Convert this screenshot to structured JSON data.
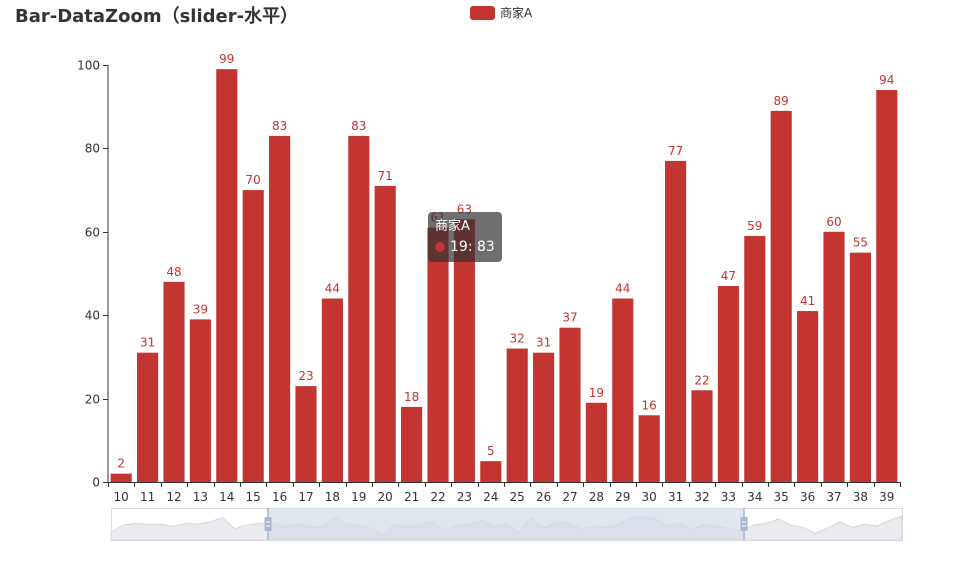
{
  "title": "Bar-DataZoom（slider-水平）",
  "legend": {
    "label": "商家A",
    "color": "#c23531"
  },
  "tooltip": {
    "series": "商家A",
    "category": "19",
    "value": "83",
    "text": "19: 83"
  },
  "colors": {
    "bar": "#c23531",
    "axis": "#333333",
    "label": "#c23531",
    "slider_fill": "#d2dbe7",
    "slider_handle": "#a7b7cc",
    "slider_bg_area": "#e9ebee"
  },
  "chart_data": {
    "type": "bar",
    "title": "Bar-DataZoom（slider-水平）",
    "xlabel": "",
    "ylabel": "",
    "ylim": [
      0,
      100
    ],
    "yticks": [
      0,
      20,
      40,
      60,
      80,
      100
    ],
    "grid": false,
    "legend_position": "top-center",
    "categories": [
      "10",
      "11",
      "12",
      "13",
      "14",
      "15",
      "16",
      "17",
      "18",
      "19",
      "20",
      "21",
      "22",
      "23",
      "24",
      "25",
      "26",
      "27",
      "28",
      "29",
      "30",
      "31",
      "32",
      "33",
      "34",
      "35",
      "36",
      "37",
      "38",
      "39"
    ],
    "series": [
      {
        "name": "商家A",
        "values": [
          2,
          31,
          48,
          39,
          99,
          70,
          83,
          23,
          44,
          83,
          71,
          18,
          61,
          63,
          5,
          32,
          31,
          37,
          19,
          44,
          16,
          77,
          22,
          47,
          59,
          89,
          41,
          60,
          55,
          94
        ]
      }
    ],
    "datazoom": {
      "type": "slider",
      "orientation": "horizontal",
      "preview_values": [
        50,
        60,
        62,
        61,
        61,
        58,
        62,
        61,
        64,
        70,
        55,
        60,
        62,
        63,
        58,
        62,
        58,
        57,
        70,
        62,
        59,
        56,
        48,
        62,
        57,
        61,
        65,
        52,
        60,
        61,
        66,
        58,
        63,
        50,
        70,
        56,
        63,
        63,
        55,
        58,
        57,
        60,
        70,
        71,
        69,
        59,
        62,
        54,
        61,
        58,
        55,
        52,
        60,
        62,
        68,
        60,
        57,
        49,
        56,
        64,
        57,
        61,
        59,
        66,
        72
      ]
    },
    "annotations": [
      "tooltip: 商家A 19: 83"
    ]
  }
}
